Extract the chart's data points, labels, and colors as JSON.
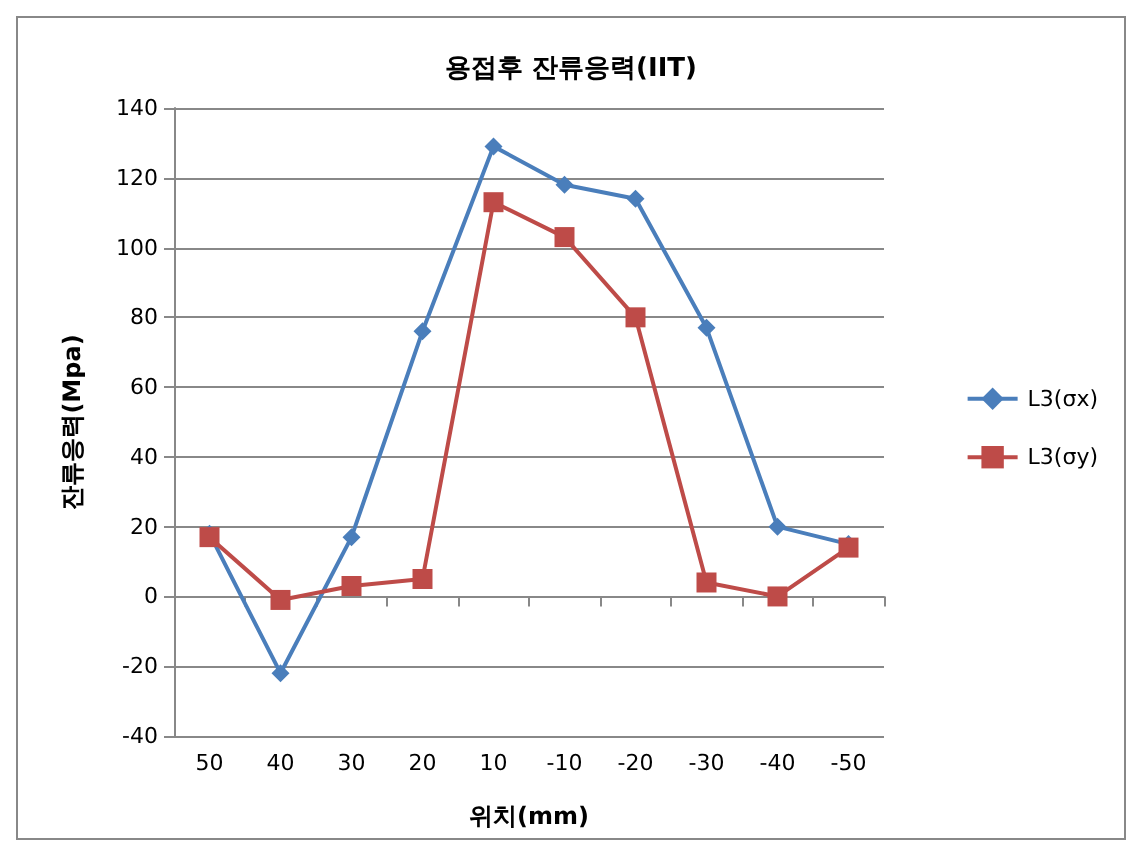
{
  "chart_data": {
    "type": "line",
    "title": "용접후 잔류응력(IIT)",
    "xlabel": "위치(mm)",
    "ylabel": "잔류응력(Mpa)",
    "categories": [
      "50",
      "40",
      "30",
      "20",
      "10",
      "-10",
      "-20",
      "-30",
      "-40",
      "-50"
    ],
    "series": [
      {
        "name": "L3(σx)",
        "color": "#4a7ebb",
        "marker": "diamond",
        "values": [
          18,
          -22,
          17,
          76,
          129,
          118,
          114,
          77,
          20,
          15
        ]
      },
      {
        "name": "L3(σy)",
        "color": "#be4b48",
        "marker": "square",
        "values": [
          17,
          -1,
          3,
          5,
          113,
          103,
          80,
          4,
          0,
          14
        ]
      }
    ],
    "ylim": [
      -40,
      140
    ],
    "yticks": [
      -40,
      -20,
      0,
      20,
      40,
      60,
      80,
      100,
      120,
      140
    ],
    "grid": "y",
    "legend": "right"
  }
}
